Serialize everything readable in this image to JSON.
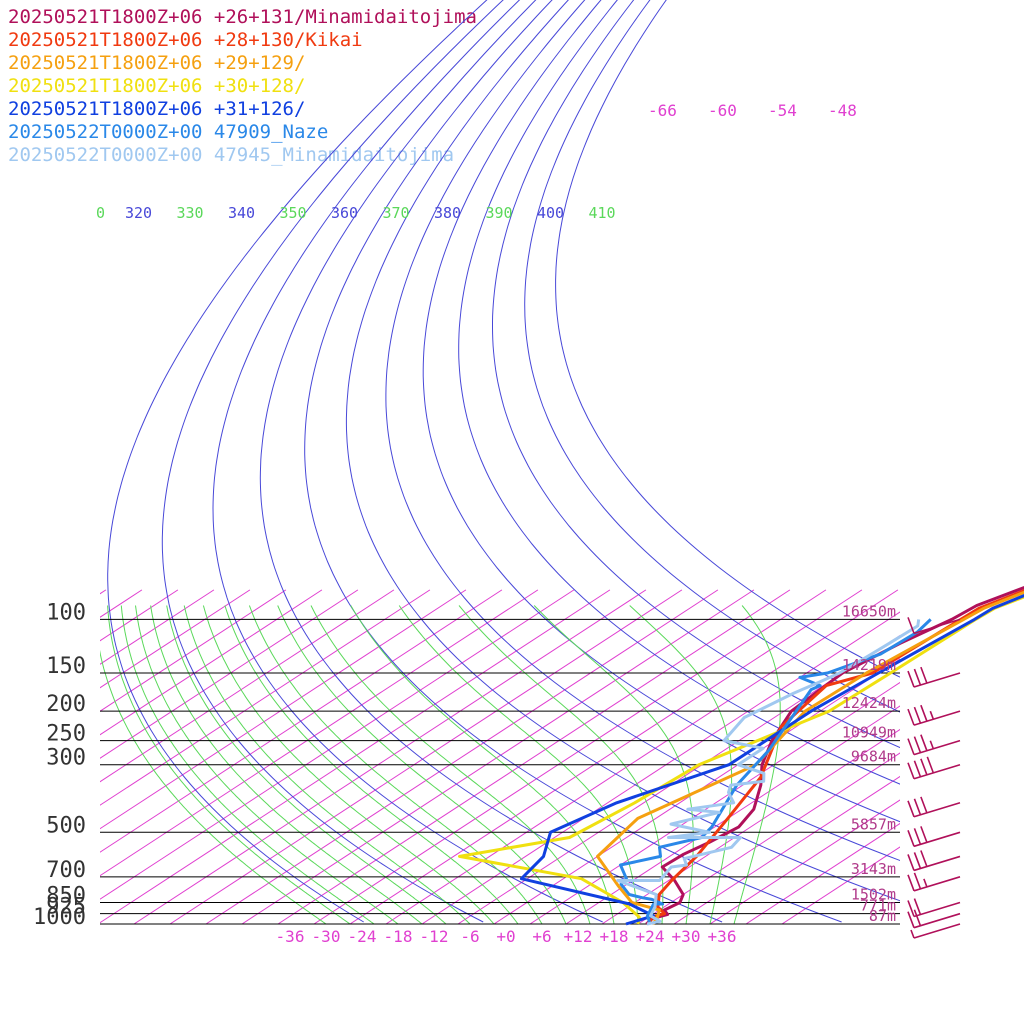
{
  "legend": [
    {
      "label": "20250521T1800Z+06 +26+131/Minamidaitojima",
      "color": "#b0105a"
    },
    {
      "label": "20250521T1800Z+06 +28+130/Kikai",
      "color": "#f03a10"
    },
    {
      "label": "20250521T1800Z+06 +29+129/",
      "color": "#f5a010"
    },
    {
      "label": "20250521T1800Z+06 +30+128/",
      "color": "#f0e010"
    },
    {
      "label": "20250521T1800Z+06 +31+126/",
      "color": "#1040e0"
    },
    {
      "label": "20250522T0000Z+00 47909_Naze",
      "color": "#2a88e8"
    },
    {
      "label": "20250522T0000Z+00 47945_Minamidaitojima",
      "color": "#a0c8f0"
    }
  ],
  "chart_data": {
    "type": "line",
    "subtype": "skew-T log-P diagram",
    "pressure_levels": [
      {
        "p": 100,
        "label": "100",
        "height": "16650m"
      },
      {
        "p": 150,
        "label": "150",
        "height": "14219m"
      },
      {
        "p": 200,
        "label": "200",
        "height": "12424m"
      },
      {
        "p": 250,
        "label": "250",
        "height": "10949m"
      },
      {
        "p": 300,
        "label": "300",
        "height": "9684m"
      },
      {
        "p": 500,
        "label": "500",
        "height": "5857m"
      },
      {
        "p": 700,
        "label": "700",
        "height": "3143m"
      },
      {
        "p": 850,
        "label": "850",
        "height": "1502m"
      },
      {
        "p": 925,
        "label": "925",
        "height": "771m"
      },
      {
        "p": 1000,
        "label": "1000",
        "height": "87m"
      }
    ],
    "x_ticks": [
      "-36",
      "-30",
      "-24",
      "-18",
      "-12",
      "-6",
      "+0",
      "+6",
      "+12",
      "+18",
      "+24",
      "+30",
      "+36"
    ],
    "top_isotherm_labels": [
      "-66",
      "-60",
      "-54",
      "-48"
    ],
    "theta_labels": [
      {
        "text": "0",
        "color": "#5ad85a"
      },
      {
        "text": "320",
        "color": "#4848d8"
      },
      {
        "text": "330",
        "color": "#5ad85a"
      },
      {
        "text": "340",
        "color": "#4848d8"
      },
      {
        "text": "350",
        "color": "#5ad85a"
      },
      {
        "text": "360",
        "color": "#4848d8"
      },
      {
        "text": "370",
        "color": "#5ad85a"
      },
      {
        "text": "380",
        "color": "#4848d8"
      },
      {
        "text": "390",
        "color": "#5ad85a"
      },
      {
        "text": "400",
        "color": "#4848d8"
      },
      {
        "text": "410",
        "color": "#5ad85a"
      }
    ],
    "xlim": [
      -39,
      41
    ],
    "plim": [
      100,
      1000
    ],
    "colors": {
      "isotherm": "#e040d0",
      "dry_adiabat": "#4848d8",
      "moist_adiabat": "#5ad85a",
      "isobar": "#000000",
      "wind_barb": "#b0105a"
    },
    "series": [
      {
        "color": "#b0105a",
        "points": [
          [
            23.4,
            1000
          ],
          [
            23.0,
            960
          ],
          [
            24.5,
            930
          ],
          [
            22.8,
            900
          ],
          [
            23.5,
            850
          ],
          [
            22.0,
            800
          ],
          [
            17.0,
            720
          ],
          [
            11.5,
            650
          ],
          [
            11.8,
            590
          ],
          [
            13.0,
            540
          ],
          [
            14.0,
            480
          ],
          [
            12.0,
            420
          ],
          [
            7.0,
            350
          ],
          [
            2.0,
            300
          ],
          [
            -2.5,
            250
          ],
          [
            -6.8,
            200
          ],
          [
            -8.0,
            150
          ],
          [
            -6.0,
            120
          ],
          [
            -3.5,
            100
          ],
          [
            -2.9,
            90
          ],
          [
            11.5,
            50
          ],
          [
            28.0,
            28
          ]
        ]
      },
      {
        "color": "#f03a10",
        "points": [
          [
            24.0,
            1000
          ],
          [
            22.5,
            950
          ],
          [
            23.8,
            925
          ],
          [
            21.0,
            880
          ],
          [
            18.0,
            800
          ],
          [
            16.5,
            720
          ],
          [
            14.5,
            600
          ],
          [
            10.0,
            450
          ],
          [
            5.0,
            330
          ],
          [
            0.0,
            270
          ],
          [
            -4.5,
            225
          ],
          [
            -7.5,
            165
          ],
          [
            -3.0,
            150
          ],
          [
            -2.0,
            100
          ],
          [
            -1.8,
            92
          ],
          [
            12.0,
            50
          ],
          [
            28.5,
            28
          ]
        ]
      },
      {
        "color": "#f5a010",
        "points": [
          [
            24.5,
            1000
          ],
          [
            23.5,
            950
          ],
          [
            22.0,
            900
          ],
          [
            15.5,
            850
          ],
          [
            9.0,
            750
          ],
          [
            -2.0,
            600
          ],
          [
            -5.0,
            450
          ],
          [
            1.0,
            300
          ],
          [
            -1.5,
            250
          ],
          [
            -4.5,
            200
          ],
          [
            -4.0,
            150
          ],
          [
            -1.5,
            100
          ],
          [
            -1.0,
            92
          ],
          [
            12.3,
            50
          ],
          [
            29.0,
            28
          ]
        ]
      },
      {
        "color": "#f0e010",
        "points": [
          [
            22.0,
            1000
          ],
          [
            20.5,
            950
          ],
          [
            14.0,
            850
          ],
          [
            1.0,
            710
          ],
          [
            -25.0,
            600
          ],
          [
            -11.5,
            520
          ],
          [
            -9.5,
            400
          ],
          [
            -8.5,
            300
          ],
          [
            -0.5,
            200
          ],
          [
            0.0,
            150
          ],
          [
            0.5,
            100
          ],
          [
            0.8,
            92
          ],
          [
            15.0,
            50
          ],
          [
            30.0,
            28
          ]
        ]
      },
      {
        "color": "#1040e0",
        "points": [
          [
            20.0,
            1000
          ],
          [
            22.5,
            940
          ],
          [
            15.5,
            860
          ],
          [
            -9.0,
            710
          ],
          [
            -11.0,
            600
          ],
          [
            -16.0,
            500
          ],
          [
            -12.5,
            400
          ],
          [
            -3.5,
            300
          ],
          [
            -3.5,
            200
          ],
          [
            -2.0,
            150
          ],
          [
            0.3,
            100
          ],
          [
            0.5,
            92
          ],
          [
            13.0,
            50
          ],
          [
            29.5,
            28
          ]
        ]
      },
      {
        "color": "#2a88e8",
        "points": [
          [
            24.0,
            1000
          ],
          [
            21.5,
            940
          ],
          [
            19.5,
            860
          ],
          [
            21.0,
            860
          ],
          [
            18.0,
            830
          ],
          [
            16.0,
            820
          ],
          [
            13.0,
            800
          ],
          [
            9.0,
            740
          ],
          [
            8.5,
            710
          ],
          [
            4.0,
            640
          ],
          [
            8.5,
            600
          ],
          [
            6.0,
            560
          ],
          [
            10.5,
            520
          ],
          [
            9.5,
            480
          ],
          [
            3.0,
            350
          ],
          [
            -0.5,
            270
          ],
          [
            -6.0,
            200
          ],
          [
            -9.0,
            170
          ],
          [
            -8.5,
            165
          ],
          [
            -14.0,
            155
          ],
          [
            -10.5,
            150
          ],
          [
            -6.5,
            130
          ],
          [
            -6.0,
            110
          ],
          [
            -7.0,
            100
          ]
        ]
      },
      {
        "color": "#a0c8f0",
        "points": [
          [
            23.5,
            1000
          ],
          [
            25.0,
            980
          ],
          [
            22.0,
            940
          ],
          [
            20.5,
            880
          ],
          [
            17.5,
            800
          ],
          [
            7.5,
            720
          ],
          [
            14.5,
            720
          ],
          [
            13.0,
            650
          ],
          [
            15.0,
            640
          ],
          [
            13.0,
            610
          ],
          [
            18.0,
            560
          ],
          [
            17.0,
            520
          ],
          [
            5.0,
            520
          ],
          [
            10.5,
            500
          ],
          [
            2.0,
            470
          ],
          [
            7.0,
            430
          ],
          [
            1.0,
            420
          ],
          [
            7.0,
            400
          ],
          [
            3.5,
            370
          ],
          [
            2.0,
            350
          ],
          [
            6.5,
            340
          ],
          [
            4.5,
            320
          ],
          [
            -2.0,
            300
          ],
          [
            -2.0,
            265
          ],
          [
            -10.5,
            250
          ],
          [
            -13.0,
            210
          ],
          [
            -11.0,
            175
          ],
          [
            -9.5,
            160
          ],
          [
            -8.5,
            150
          ],
          [
            -8.0,
            130
          ],
          [
            -7.5,
            105
          ],
          [
            -9.0,
            100
          ]
        ]
      }
    ],
    "wind_barbs": [
      {
        "p": 1000,
        "flags": 0,
        "full": 0,
        "half": 1
      },
      {
        "p": 925,
        "flags": 0,
        "full": 2,
        "half": 0
      },
      {
        "p": 850,
        "flags": 0,
        "full": 2,
        "half": 0
      },
      {
        "p": 700,
        "flags": 0,
        "full": 2,
        "half": 1
      },
      {
        "p": 600,
        "flags": 0,
        "full": 3,
        "half": 0
      },
      {
        "p": 500,
        "flags": 0,
        "full": 3,
        "half": 0
      },
      {
        "p": 400,
        "flags": 0,
        "full": 3,
        "half": 0
      },
      {
        "p": 300,
        "flags": 0,
        "full": 4,
        "half": 0
      },
      {
        "p": 250,
        "flags": 0,
        "full": 3,
        "half": 1
      },
      {
        "p": 200,
        "flags": 0,
        "full": 3,
        "half": 1
      },
      {
        "p": 150,
        "flags": 0,
        "full": 3,
        "half": 0
      },
      {
        "p": 100,
        "flags": 0,
        "full": 1,
        "half": 0
      }
    ]
  }
}
